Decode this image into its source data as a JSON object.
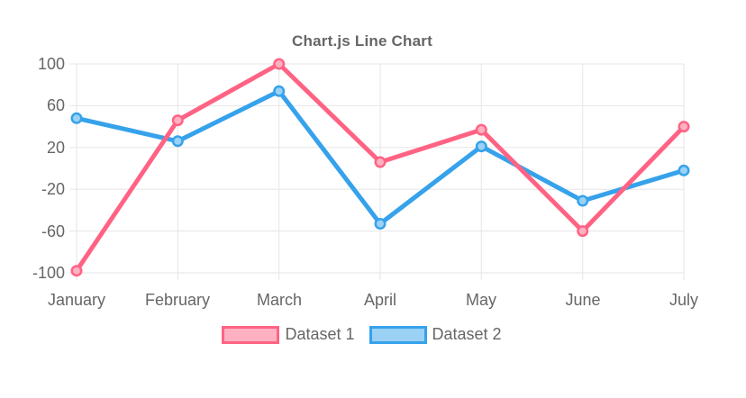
{
  "chart_data": {
    "type": "line",
    "title": "Chart.js Line Chart",
    "categories": [
      "January",
      "February",
      "March",
      "April",
      "May",
      "June",
      "July"
    ],
    "series": [
      {
        "name": "Dataset 1",
        "border_color": "#FF6384",
        "fill_color": "#FFB1C2",
        "values": [
          -98,
          46,
          100,
          6,
          37,
          -60,
          40
        ]
      },
      {
        "name": "Dataset 2",
        "border_color": "#36A2EB",
        "fill_color": "#9AD1F5",
        "values": [
          48,
          26,
          74,
          -53,
          21,
          -31,
          -2
        ]
      }
    ],
    "xlabel": "",
    "ylabel": "",
    "ylim": [
      -100,
      100
    ],
    "y_ticks": [
      100,
      60,
      20,
      -20,
      -60,
      -100
    ],
    "grid": true,
    "legend_position": "bottom",
    "text_color": "#666666",
    "grid_color": "#E6E6E6"
  }
}
